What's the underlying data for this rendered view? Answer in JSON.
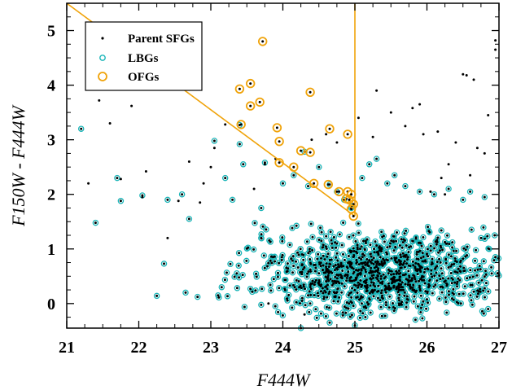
{
  "chart_data": {
    "type": "scatter",
    "xlabel": "F444W",
    "ylabel": "F150W - F444W",
    "xlim": [
      21,
      27
    ],
    "ylim": [
      -0.45,
      5.5
    ],
    "grid": false,
    "legend_position": "top-left",
    "xticks": [
      "21",
      "22",
      "23",
      "24",
      "25",
      "26",
      "27"
    ],
    "yticks": [
      "0",
      "1",
      "2",
      "3",
      "4",
      "5"
    ],
    "colors": {
      "parent": "#000000",
      "lbg": "#1ab5b8",
      "ofg": "#f0a30a",
      "selection": "#f0a30a"
    },
    "selection_lines": [
      {
        "from": [
          21.0,
          5.5
        ],
        "to": [
          25.0,
          1.6
        ]
      },
      {
        "from": [
          25.0,
          1.6
        ],
        "to": [
          25.0,
          5.5
        ]
      }
    ],
    "series": [
      {
        "name": "Parent SFGs",
        "marker": "dot",
        "points": [
          [
            21.9,
            3.62
          ],
          [
            21.6,
            3.3
          ],
          [
            21.45,
            3.72
          ],
          [
            21.3,
            2.2
          ],
          [
            21.75,
            2.28
          ],
          [
            22.05,
            1.95
          ],
          [
            22.1,
            2.42
          ],
          [
            22.55,
            1.88
          ],
          [
            22.4,
            1.2
          ],
          [
            22.85,
            1.85
          ],
          [
            22.7,
            2.6
          ],
          [
            23.0,
            2.5
          ],
          [
            23.05,
            2.85
          ],
          [
            23.2,
            3.28
          ],
          [
            23.6,
            2.1
          ],
          [
            23.75,
            2.55
          ],
          [
            24.6,
            3.1
          ],
          [
            24.75,
            2.95
          ],
          [
            24.4,
            3.0
          ],
          [
            25.05,
            3.4
          ],
          [
            25.25,
            3.05
          ],
          [
            25.5,
            3.5
          ],
          [
            25.7,
            3.25
          ],
          [
            25.8,
            3.58
          ],
          [
            25.9,
            3.65
          ],
          [
            25.95,
            3.1
          ],
          [
            26.15,
            3.15
          ],
          [
            26.3,
            2.55
          ],
          [
            26.4,
            2.95
          ],
          [
            26.5,
            4.2
          ],
          [
            26.55,
            4.18
          ],
          [
            26.65,
            4.1
          ],
          [
            26.7,
            2.85
          ],
          [
            26.8,
            2.75
          ],
          [
            26.95,
            4.65
          ],
          [
            26.95,
            4.82
          ],
          [
            26.85,
            3.45
          ],
          [
            26.2,
            2.3
          ],
          [
            26.05,
            2.05
          ],
          [
            26.6,
            2.35
          ],
          [
            23.8,
            0.0
          ],
          [
            24.3,
            -0.2
          ],
          [
            25.3,
            3.9
          ],
          [
            26.25,
            2.0
          ],
          [
            23.9,
            2.65
          ],
          [
            22.9,
            2.2
          ]
        ]
      },
      {
        "name": "LBGs",
        "marker": "open-circle",
        "points": [
          [
            21.2,
            3.2
          ],
          [
            21.4,
            1.48
          ],
          [
            21.7,
            2.3
          ],
          [
            21.75,
            1.88
          ],
          [
            22.05,
            1.98
          ],
          [
            22.25,
            0.14
          ],
          [
            22.35,
            0.73
          ],
          [
            22.4,
            1.9
          ],
          [
            22.6,
            2.0
          ],
          [
            22.7,
            1.55
          ],
          [
            22.65,
            0.2
          ],
          [
            23.05,
            2.98
          ],
          [
            23.1,
            0.15
          ],
          [
            23.15,
            0.3
          ],
          [
            23.4,
            3.27
          ],
          [
            23.4,
            2.92
          ],
          [
            23.45,
            2.55
          ],
          [
            23.75,
            2.58
          ],
          [
            24.0,
            2.2
          ],
          [
            24.15,
            2.35
          ],
          [
            24.3,
            2.78
          ],
          [
            24.35,
            2.15
          ],
          [
            24.5,
            2.5
          ],
          [
            24.65,
            2.18
          ],
          [
            24.75,
            2.05
          ],
          [
            24.85,
            1.9
          ],
          [
            24.95,
            1.78
          ],
          [
            24.95,
            1.75
          ],
          [
            25.1,
            2.3
          ],
          [
            25.2,
            2.55
          ],
          [
            25.3,
            2.65
          ],
          [
            25.45,
            2.2
          ],
          [
            25.55,
            2.35
          ],
          [
            25.7,
            2.15
          ],
          [
            25.9,
            2.05
          ],
          [
            26.1,
            2.0
          ],
          [
            26.3,
            2.1
          ],
          [
            26.5,
            1.9
          ],
          [
            26.6,
            2.05
          ],
          [
            26.8,
            1.95
          ],
          [
            24.25,
            -0.45
          ],
          [
            24.65,
            -0.35
          ],
          [
            25.0,
            -0.4
          ],
          [
            26.85,
            -0.1
          ],
          [
            26.9,
            0.55
          ],
          [
            26.95,
            0.85
          ],
          [
            26.75,
            1.2
          ],
          [
            23.3,
            1.9
          ],
          [
            23.7,
            1.75
          ],
          [
            23.2,
            2.3
          ]
        ]
      },
      {
        "name": "OFGs",
        "marker": "open-circle",
        "points": [
          [
            23.72,
            4.8
          ],
          [
            23.55,
            4.03
          ],
          [
            23.4,
            3.93
          ],
          [
            24.38,
            3.87
          ],
          [
            23.68,
            3.69
          ],
          [
            23.55,
            3.62
          ],
          [
            23.92,
            3.22
          ],
          [
            24.65,
            3.2
          ],
          [
            24.9,
            3.1
          ],
          [
            23.42,
            3.28
          ],
          [
            23.95,
            2.97
          ],
          [
            24.25,
            2.8
          ],
          [
            24.38,
            2.77
          ],
          [
            23.95,
            2.58
          ],
          [
            24.15,
            2.5
          ],
          [
            24.43,
            2.2
          ],
          [
            24.63,
            2.18
          ],
          [
            24.78,
            2.05
          ],
          [
            24.9,
            2.05
          ],
          [
            24.95,
            2.0
          ],
          [
            24.88,
            1.92
          ],
          [
            24.92,
            1.9
          ],
          [
            24.98,
            1.82
          ],
          [
            24.95,
            1.73
          ],
          [
            24.98,
            1.6
          ]
        ]
      }
    ],
    "dense_cloud": {
      "description_of_bulk": "approx. 1000 LBGs with parent dots concentrated in F444W 23-27, color -0.3 to 1.5",
      "x_range": [
        22.8,
        27.0
      ],
      "y_range": [
        -0.3,
        1.5
      ],
      "center": [
        25.3,
        0.55
      ]
    },
    "legend": [
      "Parent SFGs",
      "LBGs",
      "OFGs"
    ]
  }
}
